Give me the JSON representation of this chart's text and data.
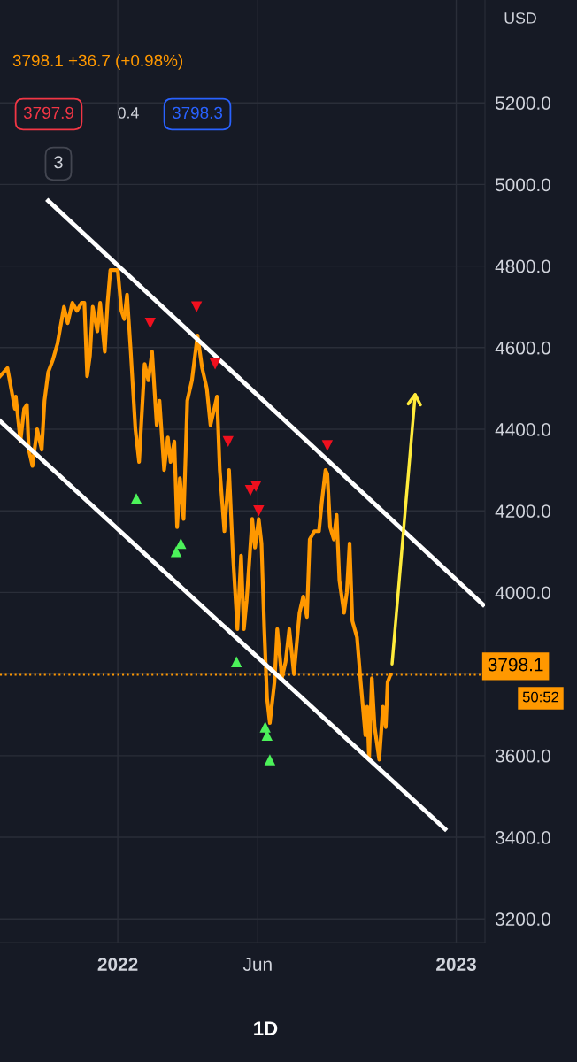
{
  "chart_data": {
    "type": "line",
    "annotations": [
      "3798.1 +36.7 (+0.98%)",
      "3797.9",
      "0.4",
      "3798.3",
      "3",
      "USD",
      "50:52",
      "1D"
    ],
    "xlim": [
      "2021-08-27",
      "2023-02-01"
    ],
    "xticks": [
      {
        "value": "2022-01-01",
        "label": "2022"
      },
      {
        "value": "2022-06-01",
        "label": "Jun"
      },
      {
        "value": "2023-01-01",
        "label": "2023"
      }
    ],
    "ylim": [
      3142,
      5452
    ],
    "yticks": [
      {
        "value": 3200,
        "label": "3200.0"
      },
      {
        "value": 3400,
        "label": "3400.0"
      },
      {
        "value": 3600,
        "label": "3600.0"
      },
      {
        "value": 3800,
        "label": null
      },
      {
        "value": 4000,
        "label": "4000.0"
      },
      {
        "value": 4200,
        "label": "4200.0"
      },
      {
        "value": 4400,
        "label": "4400.0"
      },
      {
        "value": 4600,
        "label": "4600.0"
      },
      {
        "value": 4800,
        "label": "4800.0"
      },
      {
        "value": 5000,
        "label": "5000.0"
      },
      {
        "value": 5200,
        "label": "5200.0"
      }
    ],
    "grid": true,
    "legend": false,
    "ref_lines": [
      {
        "axis": "y",
        "value": 3798.1,
        "label": "3798.1",
        "color": "#ff9800",
        "line_style": "dotted"
      }
    ],
    "series": [
      {
        "color": "#ff9800",
        "marker": "none",
        "line_style": "solid",
        "x": [
          "2021-08-27",
          "2021-09-04",
          "2021-09-08",
          "2021-09-12",
          "2021-09-13",
          "2021-09-18",
          "2021-09-22",
          "2021-09-25",
          "2021-09-27",
          "2021-10-01",
          "2021-10-06",
          "2021-10-11",
          "2021-10-14",
          "2021-10-18",
          "2021-10-23",
          "2021-10-28",
          "2021-11-04",
          "2021-11-08",
          "2021-11-13",
          "2021-11-18",
          "2021-11-23",
          "2021-11-26",
          "2021-11-29",
          "2021-12-02",
          "2021-12-05",
          "2021-12-10",
          "2021-12-13",
          "2021-12-18",
          "2021-12-21",
          "2021-12-24",
          "2022-01-01",
          "2022-01-05",
          "2022-01-08",
          "2022-01-11",
          "2022-01-15",
          "2022-01-20",
          "2022-01-24",
          "2022-01-30",
          "2022-02-03",
          "2022-02-07",
          "2022-02-12",
          "2022-02-15",
          "2022-02-20",
          "2022-02-24",
          "2022-02-27",
          "2022-03-03",
          "2022-03-06",
          "2022-03-09",
          "2022-03-13",
          "2022-03-17",
          "2022-03-22",
          "2022-03-28",
          "2022-04-02",
          "2022-04-07",
          "2022-04-11",
          "2022-04-18",
          "2022-04-21",
          "2022-04-26",
          "2022-05-01",
          "2022-05-05",
          "2022-05-10",
          "2022-05-14",
          "2022-05-17",
          "2022-05-20",
          "2022-05-26",
          "2022-05-29",
          "2022-06-02",
          "2022-06-05",
          "2022-06-08",
          "2022-06-11",
          "2022-06-14",
          "2022-06-19",
          "2022-06-22",
          "2022-06-27",
          "2022-07-01",
          "2022-07-05",
          "2022-07-10",
          "2022-07-16",
          "2022-07-20",
          "2022-07-24",
          "2022-07-27",
          "2022-08-01",
          "2022-08-06",
          "2022-08-09",
          "2022-08-13",
          "2022-08-15",
          "2022-08-18",
          "2022-08-22",
          "2022-08-25",
          "2022-08-28",
          "2022-09-02",
          "2022-09-05",
          "2022-09-08",
          "2022-09-11",
          "2022-09-16",
          "2022-09-20",
          "2022-09-25",
          "2022-09-27",
          "2022-09-29",
          "2022-10-02",
          "2022-10-05",
          "2022-10-10",
          "2022-10-14",
          "2022-10-17",
          "2022-10-19",
          "2022-10-22"
        ],
        "values": [
          4530,
          4550,
          4500,
          4450,
          4480,
          4370,
          4450,
          4460,
          4350,
          4310,
          4400,
          4350,
          4470,
          4540,
          4570,
          4610,
          4700,
          4660,
          4710,
          4690,
          4710,
          4710,
          4530,
          4580,
          4700,
          4640,
          4710,
          4590,
          4710,
          4790,
          4790,
          4690,
          4670,
          4730,
          4590,
          4400,
          4320,
          4560,
          4520,
          4590,
          4410,
          4470,
          4300,
          4380,
          4320,
          4370,
          4160,
          4280,
          4180,
          4470,
          4520,
          4630,
          4550,
          4500,
          4410,
          4480,
          4300,
          4150,
          4300,
          4100,
          3910,
          4090,
          3910,
          3980,
          4180,
          4110,
          4180,
          4120,
          3910,
          3740,
          3680,
          3780,
          3910,
          3790,
          3830,
          3910,
          3800,
          3950,
          3990,
          3940,
          4130,
          4150,
          4150,
          4220,
          4300,
          4290,
          4160,
          4130,
          4190,
          4030,
          3950,
          4000,
          4120,
          3930,
          3890,
          3780,
          3650,
          3720,
          3590,
          3790,
          3670,
          3590,
          3720,
          3670,
          3780,
          3798.1
        ]
      },
      {
        "type": "line",
        "color": "#ffffff",
        "marker": "none",
        "line_style": "solid",
        "x": [
          "2021-10-18",
          "2023-01-30"
        ],
        "values": [
          4960,
          3970
        ]
      },
      {
        "type": "line",
        "color": "#ffffff",
        "marker": "none",
        "line_style": "solid",
        "x": [
          "2021-08-27",
          "2022-12-20"
        ],
        "values": [
          4420,
          3420
        ]
      },
      {
        "type": "scatter",
        "color": "#f0101e",
        "marker": "triangle-down",
        "x": [
          "2022-02-05",
          "2022-03-27",
          "2022-04-16",
          "2022-04-30",
          "2022-05-24",
          "2022-05-30",
          "2022-06-02",
          "2022-08-15"
        ],
        "values": [
          4660,
          4700,
          4560,
          4370,
          4250,
          4260,
          4200,
          4360
        ]
      },
      {
        "type": "scatter",
        "color": "#4cf25a",
        "marker": "triangle",
        "x": [
          "2022-01-21",
          "2022-03-05",
          "2022-03-10",
          "2022-05-09",
          "2022-06-09",
          "2022-06-11",
          "2022-06-14"
        ],
        "values": [
          4230,
          4100,
          4120,
          3830,
          3670,
          3650,
          3590
        ]
      }
    ]
  }
}
